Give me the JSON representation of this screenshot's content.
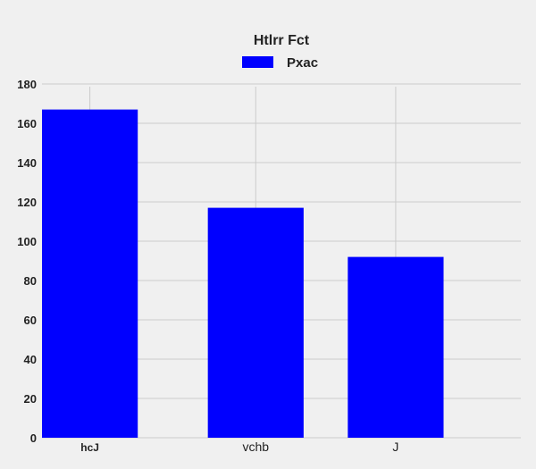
{
  "chart_data": {
    "type": "bar",
    "title": "Htlrr Fct",
    "categories": [
      "hcJ",
      "vchb",
      "J"
    ],
    "series": [
      {
        "name": "Pxac",
        "values": [
          167,
          117,
          92
        ],
        "color": "#0000ff"
      }
    ],
    "ylim": [
      0,
      180
    ],
    "yticks": [
      0,
      20,
      40,
      60,
      80,
      100,
      120,
      140,
      160,
      180
    ],
    "grid": true,
    "legend": "top-center",
    "background": "#f0f0f0"
  }
}
